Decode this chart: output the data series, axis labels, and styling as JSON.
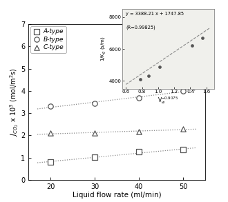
{
  "main": {
    "x": [
      20,
      30,
      40,
      50
    ],
    "A_type": [
      0.8,
      1.02,
      1.25,
      1.35
    ],
    "B_type": [
      3.3,
      3.45,
      3.7,
      4.0
    ],
    "C_type": [
      2.1,
      2.1,
      2.15,
      2.3
    ],
    "xlabel": "Liquid flow rate (ml/min)",
    "ylabel": "$J_{CO_2}$ x 10$^3$ (mol/m$^2$s)",
    "xlim": [
      15,
      55
    ],
    "ylim": [
      0,
      7
    ],
    "xticks": [
      20,
      30,
      40,
      50
    ],
    "yticks": [
      0,
      1,
      2,
      3,
      4,
      5,
      6,
      7
    ]
  },
  "inset": {
    "x": [
      0.78,
      0.88,
      1.02,
      1.42,
      1.55
    ],
    "y": [
      4100,
      4300,
      4900,
      6200,
      6700
    ],
    "fit_x": [
      0.6,
      1.65
    ],
    "eq_text": "y = 3388.21 x + 1747.85",
    "r_text": "(R=0.99825)",
    "xlabel": "V$_w^{-0.9075}$",
    "ylabel": "1/K$_g$ (s/m)",
    "xlim": [
      0.55,
      1.7
    ],
    "ylim": [
      3500,
      8500
    ],
    "xticks": [
      0.6,
      0.8,
      1.0,
      1.2,
      1.4,
      1.6
    ],
    "yticks": [
      4000,
      6000,
      8000
    ]
  },
  "legend": {
    "A_label": "A-type",
    "B_label": "B-type",
    "C_label": "C-type"
  },
  "line_color": "#888888",
  "marker_color": "#555555",
  "inset_bg": "#f0f0ec"
}
